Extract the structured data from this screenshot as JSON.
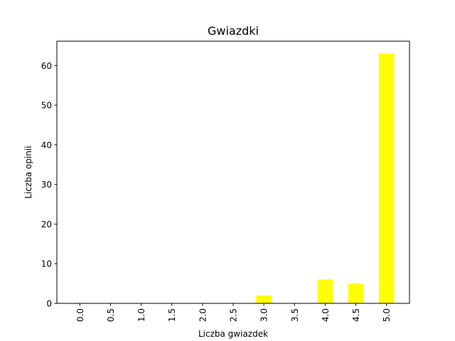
{
  "chart_data": {
    "type": "bar",
    "title": "Gwiazdki",
    "xlabel": "Liczba gwiazdek",
    "ylabel": "Liczba opinii",
    "categories": [
      "0.0",
      "0.5",
      "1.0",
      "1.5",
      "2.0",
      "2.5",
      "3.0",
      "3.5",
      "4.0",
      "4.5",
      "5.0"
    ],
    "values": [
      0,
      0,
      0,
      0,
      0,
      0,
      2,
      0,
      6,
      5,
      63
    ],
    "ylim": [
      0,
      66.15
    ],
    "yticks": [
      0,
      10,
      20,
      30,
      40,
      50,
      60
    ],
    "bar_color": "#ffff00",
    "grid": false,
    "legend": false,
    "x_tick_rotation": "vertical"
  }
}
